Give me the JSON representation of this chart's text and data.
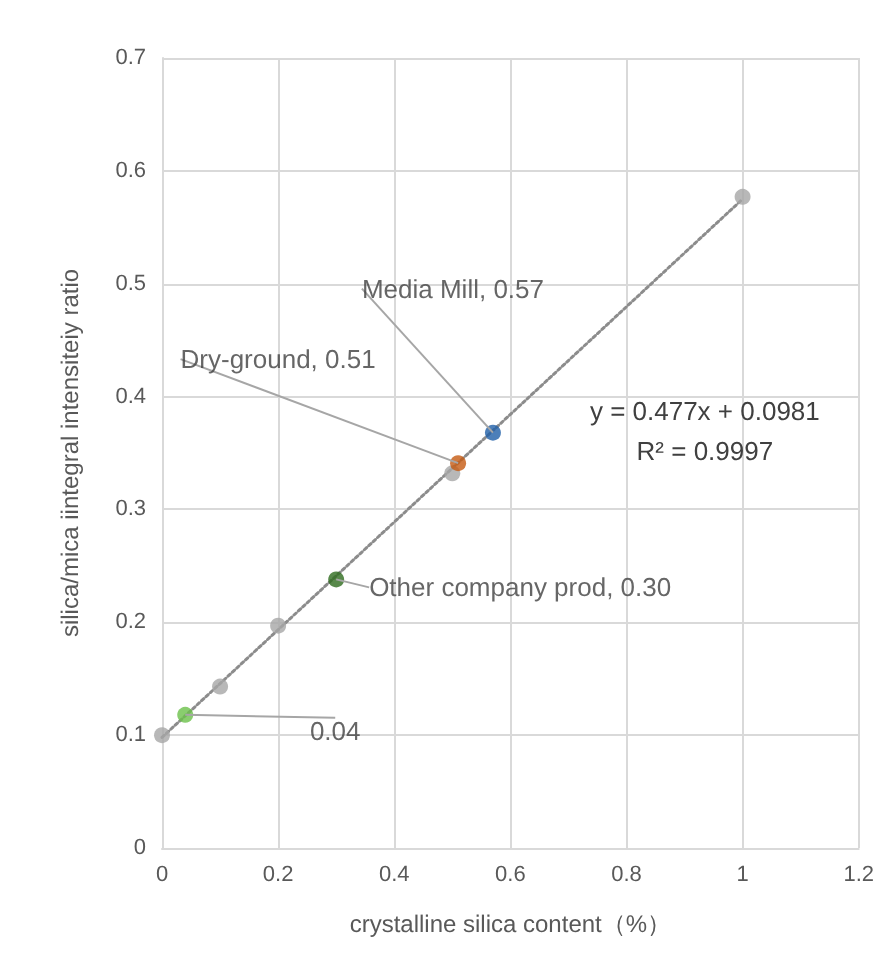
{
  "chart_data": {
    "type": "scatter",
    "xlabel": "crystalline silica content（%）",
    "ylabel": "silica/mica iintegral intensiteiy ratio",
    "xlim": [
      0,
      1.2
    ],
    "xticks": [
      0,
      0.2,
      0.4,
      0.6,
      0.8,
      1,
      1.2
    ],
    "ylim": [
      0,
      0.7
    ],
    "yticks": [
      0,
      0.1,
      0.2,
      0.3,
      0.4,
      0.5,
      0.6,
      0.7
    ],
    "grid": true,
    "marker": "circle",
    "series": [
      {
        "color": "#a6a6a6",
        "x": [
          0,
          0.1,
          0.2,
          0.5,
          1
        ],
        "values": [
          0.1,
          0.143,
          0.197,
          0.332,
          0.577
        ]
      },
      {
        "colors": [
          "#6cc04a",
          "#2e6b1e",
          "#c55a11",
          "#1f5fa8"
        ],
        "x": [
          0.04,
          0.3,
          0.51,
          0.57
        ],
        "values": [
          0.118,
          0.238,
          0.341,
          0.368
        ]
      },
      {
        "type": "line",
        "color": "#8c8c8c",
        "line_style": "dotted",
        "marker": "none",
        "x": [
          0,
          1
        ],
        "values": [
          0.098,
          0.575
        ]
      }
    ],
    "annotations": [
      {
        "text": "0.04",
        "x": 0.04,
        "y": 0.118
      },
      {
        "text": "Other company prod, 0.30",
        "x": 0.3,
        "y": 0.238
      },
      {
        "text": "Dry-ground, 0.51",
        "x": 0.51,
        "y": 0.341
      },
      {
        "text": "Media Mill, 0.57",
        "x": 0.57,
        "y": 0.368
      },
      "y = 0.477x + 0.0981",
      "R² = 0.9997"
    ]
  }
}
